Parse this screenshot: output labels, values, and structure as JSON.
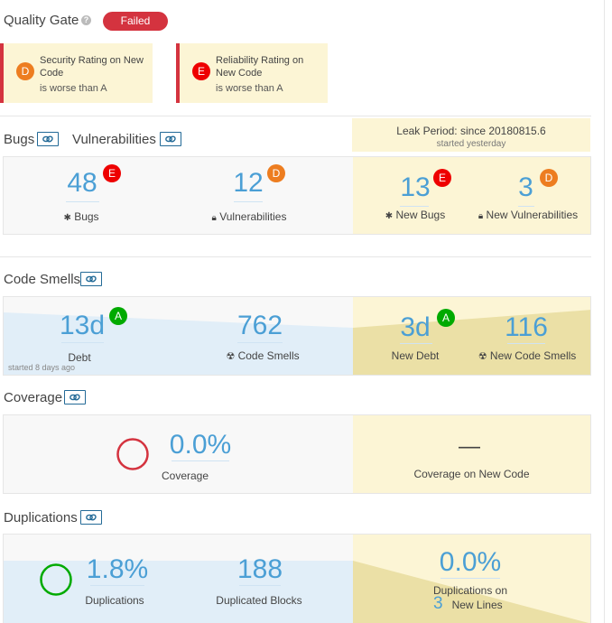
{
  "quality_gate": {
    "title": "Quality Gate",
    "help_icon": "help-circle-icon",
    "status": "Failed",
    "status_color": "#d4333f",
    "conditions": [
      {
        "rating": "D",
        "text_line1": "Security Rating on New",
        "text_line2": "Code",
        "subtext": "is worse than A",
        "rating_color": "#ed7d20"
      },
      {
        "rating": "E",
        "text_line1": "Reliability Rating on",
        "text_line2": "New Code",
        "subtext": "is worse than A",
        "rating_color": "#e00000"
      }
    ]
  },
  "sections": {
    "bugs_title": "Bugs",
    "vulnerabilities_title": "Vulnerabilities",
    "code_smells_title": "Code Smells",
    "coverage_title": "Coverage",
    "duplications_title": "Duplications",
    "link_icon": "link-icon"
  },
  "leak_period": {
    "title": "Leak Period: since 20180815.6",
    "subtitle": "started yesterday"
  },
  "bugs": {
    "value": "48",
    "rating": "E",
    "label": "Bugs",
    "icon": "bug-icon",
    "vuln_value": "12",
    "vuln_rating": "D",
    "vuln_label": "Vulnerabilities",
    "vuln_icon": "lock-icon",
    "new_bugs_value": "13",
    "new_bugs_rating": "E",
    "new_bugs_label": "New Bugs",
    "new_vuln_value": "3",
    "new_vuln_rating": "D",
    "new_vuln_label": "New Vulnerabilities"
  },
  "code_smells": {
    "debt_value": "13d",
    "debt_rating": "A",
    "debt_label": "Debt",
    "smells_value": "762",
    "smells_label": "Code Smells",
    "smells_icon": "radiation-icon",
    "new_debt_value": "3d",
    "new_debt_rating": "A",
    "new_debt_label": "New Debt",
    "new_smells_value": "116",
    "new_smells_label": "New Code Smells",
    "history_note": "started 8 days ago"
  },
  "coverage": {
    "value": "0.0%",
    "label": "Coverage",
    "new_value": "—",
    "new_label": "Coverage on New Code",
    "donut_color": "#d4333f"
  },
  "duplications": {
    "value": "1.8%",
    "label": "Duplications",
    "blocks_value": "188",
    "blocks_label": "Duplicated Blocks",
    "new_value": "0.0%",
    "new_label_line1": "Duplications on",
    "new_lines_count": "3",
    "new_label_line2": "New Lines",
    "donut_color": "#00aa00"
  }
}
